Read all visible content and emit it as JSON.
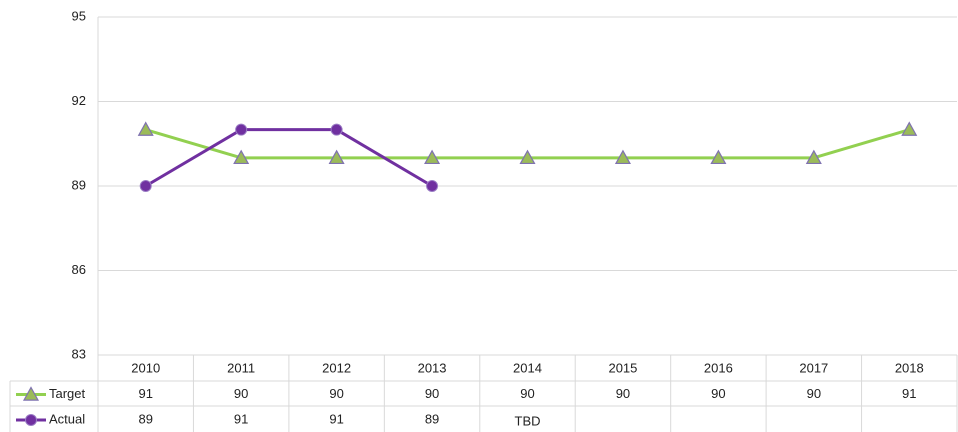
{
  "chart_data": {
    "type": "line",
    "categories": [
      "2010",
      "2011",
      "2012",
      "2013",
      "2014",
      "2015",
      "2016",
      "2017",
      "2018"
    ],
    "series": [
      {
        "name": "Target",
        "color": "#92d050",
        "marker": "triangle",
        "values": [
          91,
          90,
          90,
          90,
          90,
          90,
          90,
          90,
          91
        ]
      },
      {
        "name": "Actual",
        "color": "#7030a0",
        "marker": "circle",
        "values": [
          89,
          91,
          91,
          89,
          null,
          null,
          null,
          null,
          null
        ]
      }
    ],
    "annotations": [
      {
        "category": "2014",
        "series": "Actual",
        "text": "TBD"
      }
    ],
    "ylim": [
      83,
      95
    ],
    "yticks": [
      83,
      86,
      89,
      92,
      95
    ],
    "grid": true,
    "data_table": true
  }
}
